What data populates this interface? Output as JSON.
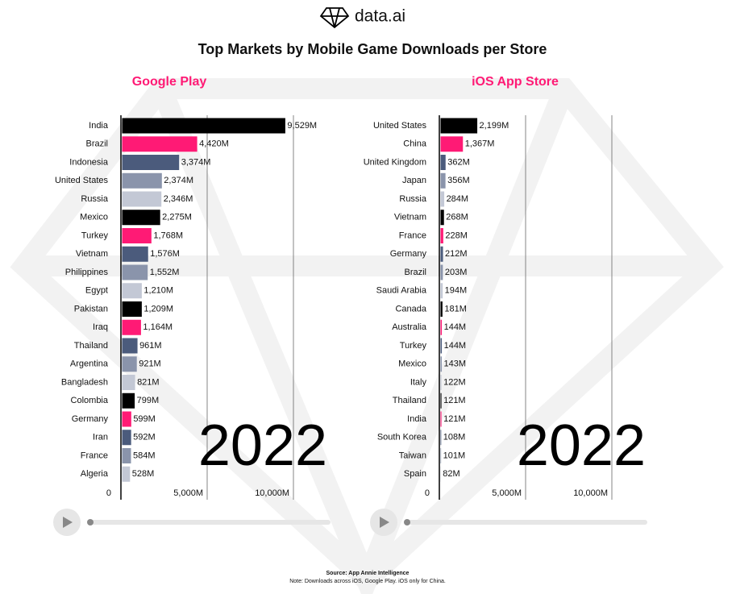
{
  "logo": "data.ai",
  "title": "Top Markets by Mobile Game Downloads per Store",
  "source": "Source: App Annie Intelligence",
  "note": "Note: Downloads across iOS, Google Play. iOS only for China.",
  "chart_data": [
    {
      "type": "bar",
      "orientation": "horizontal",
      "title": "Google Play",
      "title_color": "#ff1a75",
      "year": "2022",
      "categories": [
        "India",
        "Brazil",
        "Indonesia",
        "United States",
        "Russia",
        "Mexico",
        "Turkey",
        "Vietnam",
        "Philippines",
        "Egypt",
        "Pakistan",
        "Iraq",
        "Thailand",
        "Argentina",
        "Bangladesh",
        "Colombia",
        "Germany",
        "Iran",
        "France",
        "Algeria"
      ],
      "values": [
        9529,
        4420,
        3374,
        2374,
        2346,
        2275,
        1768,
        1576,
        1552,
        1210,
        1209,
        1164,
        961,
        921,
        821,
        799,
        599,
        592,
        584,
        528
      ],
      "value_labels": [
        "9,529M",
        "4,420M",
        "3,374M",
        "2,374M",
        "2,346M",
        "2,275M",
        "1,768M",
        "1,576M",
        "1,552M",
        "1,210M",
        "1,209M",
        "1,164M",
        "961M",
        "921M",
        "821M",
        "799M",
        "599M",
        "592M",
        "584M",
        "528M"
      ],
      "colors": [
        "#000000",
        "#ff1a75",
        "#4b5b7c",
        "#8a94ab",
        "#c3c8d5",
        "#000000",
        "#ff1a75",
        "#4b5b7c",
        "#8a94ab",
        "#c3c8d5",
        "#000000",
        "#ff1a75",
        "#4b5b7c",
        "#8a94ab",
        "#c3c8d5",
        "#000000",
        "#ff1a75",
        "#4b5b7c",
        "#8a94ab",
        "#c3c8d5"
      ],
      "xlim": [
        0,
        10000
      ],
      "xticks": [
        0,
        {
          "value": 5000,
          "label": "5,000M"
        },
        {
          "value": 10000,
          "label": "10,000M"
        }
      ],
      "grid": true
    },
    {
      "type": "bar",
      "orientation": "horizontal",
      "title": "iOS App Store",
      "title_color": "#ff1a75",
      "year": "2022",
      "categories": [
        "United States",
        "China",
        "United Kingdom",
        "Japan",
        "Russia",
        "Vietnam",
        "France",
        "Germany",
        "Brazil",
        "Saudi Arabia",
        "Canada",
        "Australia",
        "Turkey",
        "Mexico",
        "Italy",
        "Thailand",
        "India",
        "South Korea",
        "Taiwan",
        "Spain"
      ],
      "values": [
        2199,
        1367,
        362,
        356,
        284,
        268,
        228,
        212,
        203,
        194,
        181,
        144,
        144,
        143,
        122,
        121,
        121,
        108,
        101,
        82
      ],
      "value_labels": [
        "2,199M",
        "1,367M",
        "362M",
        "356M",
        "284M",
        "268M",
        "228M",
        "212M",
        "203M",
        "194M",
        "181M",
        "144M",
        "144M",
        "143M",
        "122M",
        "121M",
        "121M",
        "108M",
        "101M",
        "82M"
      ],
      "colors": [
        "#000000",
        "#ff1a75",
        "#4b5b7c",
        "#8a94ab",
        "#c3c8d5",
        "#000000",
        "#ff1a75",
        "#4b5b7c",
        "#8a94ab",
        "#c3c8d5",
        "#000000",
        "#ff1a75",
        "#4b5b7c",
        "#8a94ab",
        "#c3c8d5",
        "#000000",
        "#ff1a75",
        "#4b5b7c",
        "#8a94ab",
        "#c3c8d5"
      ],
      "xlim": [
        0,
        10000
      ],
      "xticks": [
        0,
        {
          "value": 5000,
          "label": "5,000M"
        },
        {
          "value": 10000,
          "label": "10,000M"
        }
      ],
      "grid": true
    }
  ]
}
